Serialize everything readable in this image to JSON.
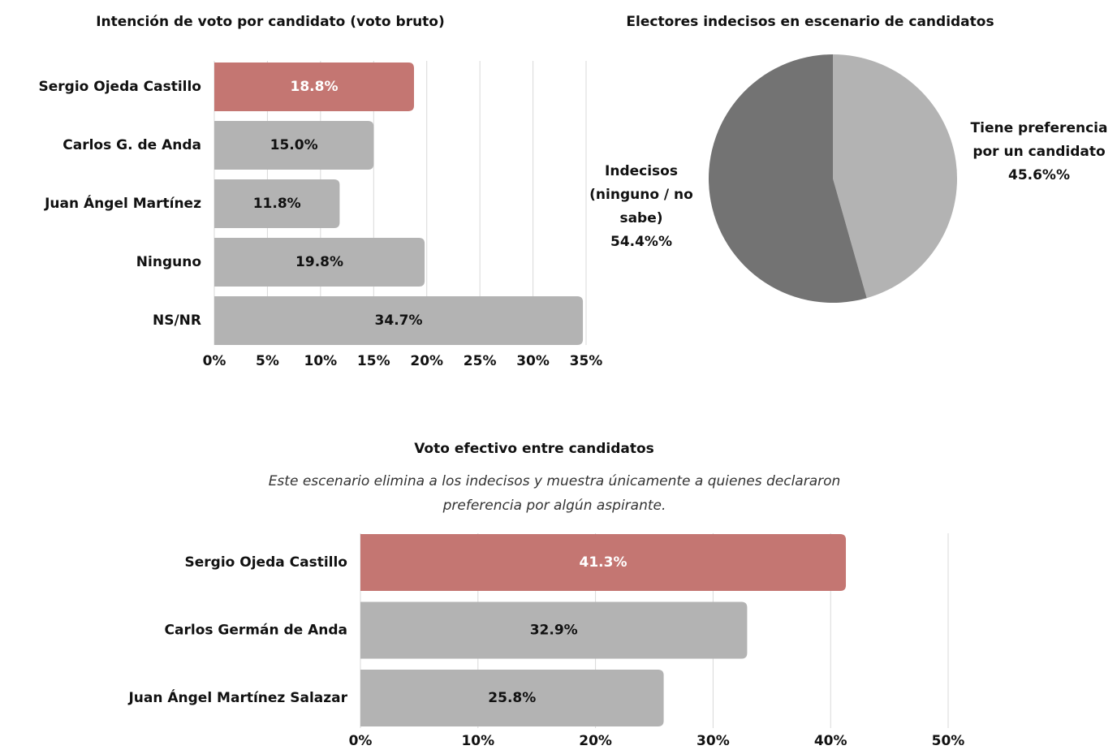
{
  "chart_data": [
    {
      "type": "bar",
      "title": "Intención de voto por candidato (voto bruto)",
      "categories": [
        "Sergio Ojeda Castillo",
        "Carlos G. de Anda",
        "Juan Ángel Martínez",
        "Ninguno",
        "NS/NR"
      ],
      "values": [
        18.8,
        15.0,
        11.8,
        19.8,
        34.7
      ],
      "value_labels": [
        "18.8%",
        "15.0%",
        "11.8%",
        "19.8%",
        "34.7%"
      ],
      "colors": [
        "#c47672",
        "#b3b3b3",
        "#b3b3b3",
        "#b3b3b3",
        "#b3b3b3"
      ],
      "value_label_colors": [
        "#ffffff",
        "#111111",
        "#111111",
        "#111111",
        "#111111"
      ],
      "xlim": [
        0,
        35
      ],
      "xticks": [
        {
          "value": 0,
          "label": "0%"
        },
        {
          "value": 5,
          "label": "5%"
        },
        {
          "value": 10,
          "label": "10%"
        },
        {
          "value": 15,
          "label": "15%"
        },
        {
          "value": 20,
          "label": "20%"
        },
        {
          "value": 25,
          "label": "25%"
        },
        {
          "value": 30,
          "label": "30%"
        },
        {
          "value": 35,
          "label": "35%"
        }
      ],
      "grid": true
    },
    {
      "type": "pie",
      "title": "Electores indecisos en escenario de candidatos",
      "labels": [
        [
          "Tiene preferencia",
          "por un candidato"
        ],
        [
          "Indecisos",
          "(ninguno / no",
          "sabe)"
        ]
      ],
      "values": [
        45.6,
        54.4
      ],
      "value_labels": [
        "45.6%%",
        "54.4%%"
      ],
      "colors": [
        "#b3b3b3",
        "#737373"
      ]
    },
    {
      "type": "bar",
      "title": "Voto efectivo entre candidatos",
      "subtitle": [
        "Este escenario elimina a los indecisos y muestra únicamente a quienes declararon",
        "preferencia por algún aspirante."
      ],
      "categories": [
        "Sergio Ojeda Castillo",
        "Carlos Germán de Anda",
        "Juan Ángel Martínez Salazar"
      ],
      "values": [
        41.3,
        32.9,
        25.8
      ],
      "value_labels": [
        "41.3%",
        "32.9%",
        "25.8%"
      ],
      "colors": [
        "#c47672",
        "#b3b3b3",
        "#b3b3b3"
      ],
      "value_label_colors": [
        "#ffffff",
        "#111111",
        "#111111"
      ],
      "xlim": [
        0,
        50
      ],
      "xticks": [
        {
          "value": 0,
          "label": "0%"
        },
        {
          "value": 10,
          "label": "10%"
        },
        {
          "value": 20,
          "label": "20%"
        },
        {
          "value": 30,
          "label": "30%"
        },
        {
          "value": 40,
          "label": "40%"
        },
        {
          "value": 50,
          "label": "50%"
        }
      ],
      "grid": true
    }
  ]
}
